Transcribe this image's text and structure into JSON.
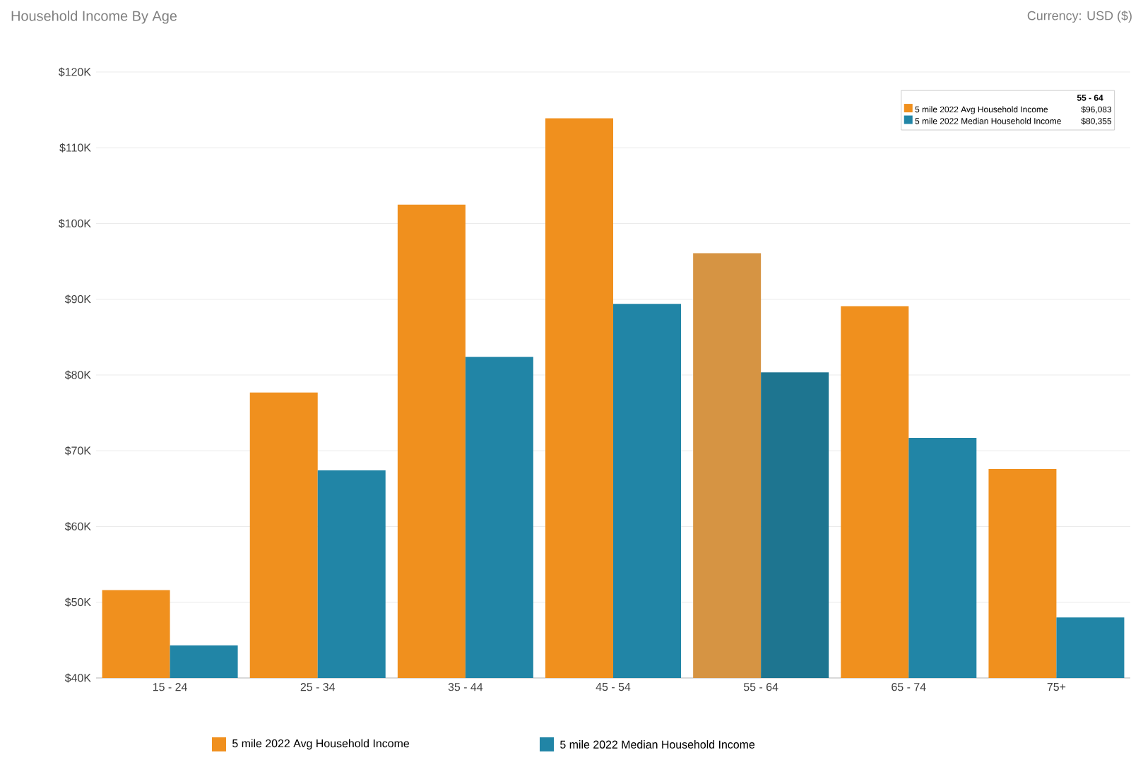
{
  "chart_data": {
    "type": "bar",
    "title": "Household Income By Age",
    "annotations": [
      "Currency: USD ($)",
      "55 - 64",
      "5 mile 2022 Avg Household Income",
      "$96,083",
      "5 mile 2022 Median Household Income",
      "$80,355"
    ],
    "categories": [
      "15 - 24",
      "25 - 34",
      "35 - 44",
      "45 - 54",
      "55 - 64",
      "65 - 74",
      "75+"
    ],
    "series": [
      {
        "name": "5 mile 2022 Avg Household Income",
        "color": "#f0901e",
        "colors": [
          "#f0901e",
          "#f0901e",
          "#f0901e",
          "#f0901e",
          "#d69443",
          "#f0901e",
          "#f0901e"
        ],
        "values": [
          51.6,
          77.7,
          102.5,
          113.9,
          96.083,
          89.1,
          67.6
        ]
      },
      {
        "name": "5 mile 2022 Median Household Income",
        "color": "#2185a6",
        "colors": [
          "#2185a6",
          "#2185a6",
          "#2185a6",
          "#2185a6",
          "#1e7590",
          "#2185a6",
          "#2185a6"
        ],
        "values": [
          44.3,
          67.4,
          82.4,
          89.4,
          80.355,
          71.7,
          48.0
        ]
      }
    ],
    "ylim": [
      40,
      120
    ],
    "yticks": [
      {
        "value": 40,
        "label": "$40K"
      },
      {
        "value": 50,
        "label": "$50K"
      },
      {
        "value": 60,
        "label": "$60K"
      },
      {
        "value": 70,
        "label": "$70K"
      },
      {
        "value": 80,
        "label": "$80K"
      },
      {
        "value": 90,
        "label": "$90K"
      },
      {
        "value": 100,
        "label": "$100K"
      },
      {
        "value": 110,
        "label": "$110K"
      },
      {
        "value": 120,
        "label": "$120K"
      }
    ],
    "grid": "y",
    "legend": "bottom"
  }
}
